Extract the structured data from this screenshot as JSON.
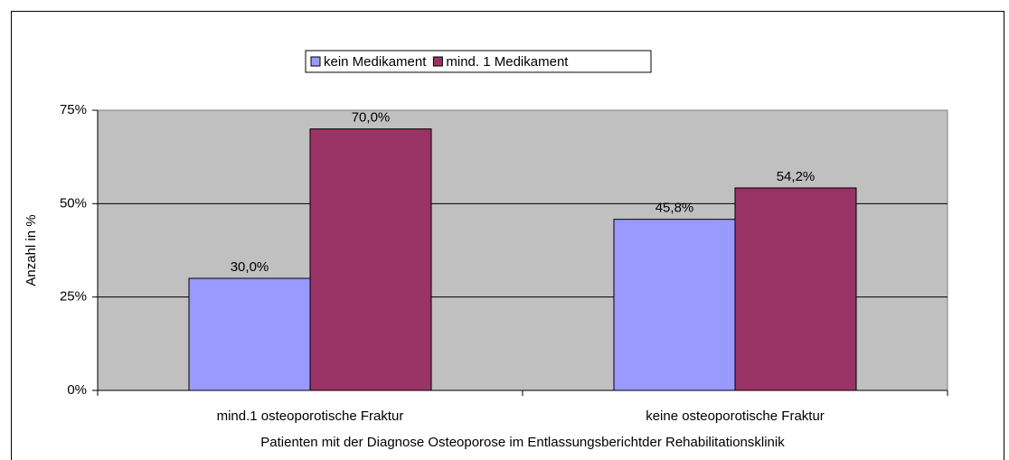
{
  "chart_data": {
    "type": "bar",
    "y_label": "Anzahl in %",
    "x_label": "Patienten mit der Diagnose Osteoporose im Entlassungsberichtder Rehabilitationsklinik",
    "categories": [
      "mind.1 osteoporotische Fraktur",
      "keine osteoporotische Fraktur"
    ],
    "series": [
      {
        "name": "kein Medikament",
        "color": "#9999ff",
        "values": [
          30.0,
          45.8
        ],
        "value_labels": [
          "30,0%",
          "45,8%"
        ]
      },
      {
        "name": "mind. 1 Medikament",
        "color": "#993366",
        "values": [
          70.0,
          54.2
        ],
        "value_labels": [
          "70,0%",
          "54,2%"
        ]
      }
    ],
    "ylim": [
      0,
      75
    ],
    "yticks": [
      {
        "value": 0,
        "label": "0%"
      },
      {
        "value": 25,
        "label": "25%"
      },
      {
        "value": 50,
        "label": "50%"
      },
      {
        "value": 75,
        "label": "75%"
      }
    ],
    "grid": true,
    "legend": "top",
    "plot_background": "#c0c0c0"
  }
}
